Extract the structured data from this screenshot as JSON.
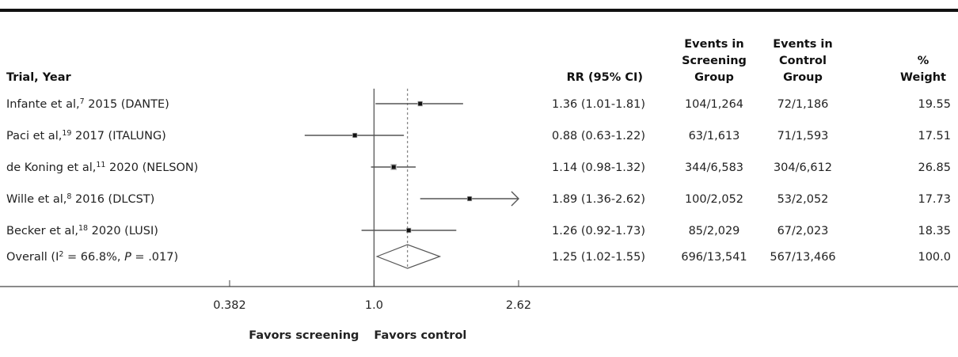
{
  "chart_data": {
    "type": "forest",
    "headers": {
      "trial": "Trial, Year",
      "rr": "RR (95% CI)",
      "screening": [
        "Events in",
        "Screening",
        "Group"
      ],
      "control": [
        "Events in",
        "Control",
        "Group"
      ],
      "weight": [
        "%",
        "Weight"
      ]
    },
    "studies": [
      {
        "label_parts": [
          "Infante et al,",
          "7",
          " 2015 (DANTE)"
        ],
        "rr": 1.36,
        "lo": 1.01,
        "hi": 1.81,
        "rr_label": "1.36 (1.01-1.81)",
        "screening": "104/1,264",
        "control": "72/1,186",
        "weight": 19.55
      },
      {
        "label_parts": [
          "Paci et al,",
          "19",
          " 2017 (ITALUNG)"
        ],
        "rr": 0.88,
        "lo": 0.63,
        "hi": 1.22,
        "rr_label": "0.88 (0.63-1.22)",
        "screening": "63/1,613",
        "control": "71/1,593",
        "weight": 17.51
      },
      {
        "label_parts": [
          "de Koning et al,",
          "11",
          " 2020 (NELSON)"
        ],
        "rr": 1.14,
        "lo": 0.98,
        "hi": 1.32,
        "rr_label": "1.14 (0.98-1.32)",
        "screening": "344/6,583",
        "control": "304/6,612",
        "weight": 26.85
      },
      {
        "label_parts": [
          "Wille et al,",
          "8",
          " 2016 (DLCST)"
        ],
        "rr": 1.89,
        "lo": 1.36,
        "hi": 2.62,
        "rr_label": "1.89 (1.36-2.62)",
        "screening": "100/2,052",
        "control": "53/2,052",
        "weight": 17.73
      },
      {
        "label_parts": [
          "Becker et al,",
          "18",
          " 2020 (LUSI)"
        ],
        "rr": 1.26,
        "lo": 0.92,
        "hi": 1.73,
        "rr_label": "1.26 (0.92-1.73)",
        "screening": "85/2,029",
        "control": "67/2,023",
        "weight": 18.35
      }
    ],
    "overall": {
      "label_parts": [
        "Overall (I",
        "2",
        " = 66.8%, ",
        "P",
        " = .017)"
      ],
      "rr": 1.25,
      "lo": 1.02,
      "hi": 1.55,
      "rr_label": "1.25 (1.02-1.55)",
      "screening": "696/13,541",
      "control": "567/13,466",
      "weight": "100.0"
    },
    "xscale": "log",
    "xlim": [
      0.382,
      2.62
    ],
    "xticks": [
      0.382,
      {
        "value": 1,
        "label": "1.0"
      },
      2.62
    ],
    "null_value": 1,
    "left_label": "Favors screening",
    "right_label": "Favors control",
    "color": "#555555"
  }
}
